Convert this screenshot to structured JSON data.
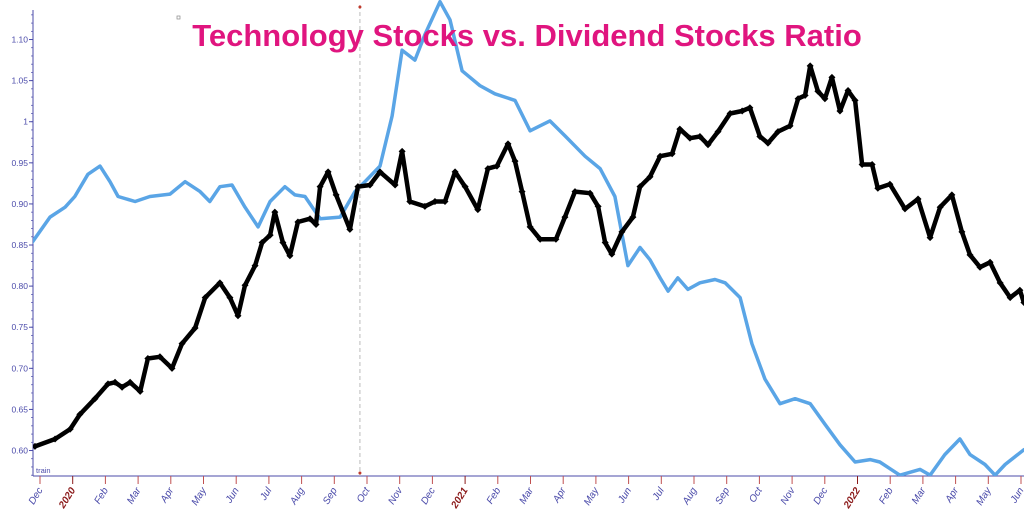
{
  "chart_data": {
    "type": "line",
    "title": "Technology Stocks vs. Dividend Stocks Ratio",
    "xlabel": "",
    "ylabel": "",
    "corner_label": "train",
    "x_units": "months since Dec 2019",
    "xlim": [
      -0.21,
      29.37
    ],
    "ylim": [
      0.569,
      1.142
    ],
    "grid": false,
    "y_ticks": [
      {
        "v": 0.6,
        "label": "0.60"
      },
      {
        "v": 0.65,
        "label": "0.65"
      },
      {
        "v": 0.7,
        "label": "0.70"
      },
      {
        "v": 0.75,
        "label": "0.75"
      },
      {
        "v": 0.8,
        "label": "0.80"
      },
      {
        "v": 0.85,
        "label": "0.85"
      },
      {
        "v": 0.9,
        "label": "0.90"
      },
      {
        "v": 0.95,
        "label": "0.95"
      },
      {
        "v": 1.0,
        "label": "1"
      },
      {
        "v": 1.05,
        "label": "1.05"
      },
      {
        "v": 1.1,
        "label": "1.10"
      }
    ],
    "x_ticks": [
      {
        "label": "Dec",
        "year": false
      },
      {
        "label": "2020",
        "year": true
      },
      {
        "label": "Feb",
        "year": false
      },
      {
        "label": "Mar",
        "year": false
      },
      {
        "label": "Apr",
        "year": false
      },
      {
        "label": "May",
        "year": false
      },
      {
        "label": "Jun",
        "year": false
      },
      {
        "label": "Jul",
        "year": false
      },
      {
        "label": "Aug",
        "year": false
      },
      {
        "label": "Sep",
        "year": false
      },
      {
        "label": "Oct",
        "year": false
      },
      {
        "label": "Nov",
        "year": false
      },
      {
        "label": "Dec",
        "year": false
      },
      {
        "label": "2021",
        "year": true
      },
      {
        "label": "Feb",
        "year": false
      },
      {
        "label": "Mar",
        "year": false
      },
      {
        "label": "Apr",
        "year": false
      },
      {
        "label": "May",
        "year": false
      },
      {
        "label": "Jun",
        "year": false
      },
      {
        "label": "Jul",
        "year": false
      },
      {
        "label": "Aug",
        "year": false
      },
      {
        "label": "Sep",
        "year": false
      },
      {
        "label": "Oct",
        "year": false
      },
      {
        "label": "Nov",
        "year": false
      },
      {
        "label": "Dec",
        "year": false
      },
      {
        "label": "2022",
        "year": true
      },
      {
        "label": "Feb",
        "year": false
      },
      {
        "label": "Mar",
        "year": false
      },
      {
        "label": "Apr",
        "year": false
      },
      {
        "label": "May",
        "year": false
      },
      {
        "label": "Jun",
        "year": false
      }
    ],
    "marker_line_x": 9.55,
    "colors": {
      "title": "#e0157f",
      "blue_series": "#5aa5e6",
      "black_series": "#000000",
      "axis": "#4b4baa",
      "year_tick": "#8b1a1a",
      "marker_line": "#c0392b"
    },
    "series": [
      {
        "name": "blue",
        "markers": false,
        "x": [
          -0.24,
          0.3,
          0.75,
          1.04,
          1.43,
          1.79,
          2.09,
          2.33,
          2.84,
          3.28,
          3.88,
          4.33,
          4.78,
          5.07,
          5.37,
          5.73,
          6.12,
          6.51,
          6.87,
          7.31,
          7.61,
          7.91,
          8.36,
          8.96,
          9.4,
          9.7,
          10.15,
          10.51,
          10.81,
          11.19,
          11.49,
          11.94,
          12.24,
          12.6,
          13.13,
          13.58,
          14.18,
          14.63,
          15.22,
          15.67,
          16.27,
          16.72,
          17.16,
          17.55,
          17.91,
          18.21,
          18.51,
          18.75,
          19.04,
          19.34,
          19.7,
          20.15,
          20.45,
          20.9,
          21.25,
          21.64,
          22.09,
          22.54,
          22.99,
          23.43,
          23.88,
          24.33,
          24.78,
          25.07,
          25.67,
          26.27,
          26.57,
          27.01,
          27.46,
          27.76,
          28.21,
          28.51,
          28.81,
          29.37
        ],
        "y": [
          0.853,
          0.884,
          0.896,
          0.909,
          0.936,
          0.946,
          0.927,
          0.909,
          0.903,
          0.909,
          0.912,
          0.927,
          0.915,
          0.903,
          0.921,
          0.923,
          0.896,
          0.872,
          0.903,
          0.921,
          0.911,
          0.909,
          0.882,
          0.884,
          0.915,
          0.927,
          0.946,
          1.007,
          1.087,
          1.075,
          1.106,
          1.146,
          1.124,
          1.062,
          1.044,
          1.034,
          1.026,
          0.989,
          1.001,
          0.983,
          0.958,
          0.943,
          0.909,
          0.825,
          0.847,
          0.832,
          0.81,
          0.794,
          0.81,
          0.796,
          0.804,
          0.808,
          0.804,
          0.786,
          0.73,
          0.687,
          0.657,
          0.663,
          0.657,
          0.632,
          0.607,
          0.586,
          0.589,
          0.586,
          0.57,
          0.577,
          0.57,
          0.595,
          0.614,
          0.595,
          0.583,
          0.57,
          0.583,
          0.601
        ]
      },
      {
        "name": "black",
        "markers": true,
        "x": [
          -0.15,
          0.45,
          0.9,
          1.19,
          1.64,
          2.03,
          2.24,
          2.45,
          2.69,
          2.99,
          3.22,
          3.58,
          3.94,
          4.24,
          4.63,
          4.93,
          5.37,
          5.67,
          5.91,
          6.12,
          6.42,
          6.63,
          6.87,
          7.01,
          7.25,
          7.46,
          7.7,
          8.06,
          8.24,
          8.36,
          8.6,
          8.84,
          9.25,
          9.49,
          9.85,
          10.15,
          10.6,
          10.81,
          11.04,
          11.49,
          11.79,
          12.09,
          12.39,
          12.69,
          13.07,
          13.37,
          13.64,
          13.97,
          14.18,
          14.39,
          14.63,
          14.93,
          15.4,
          15.67,
          15.97,
          16.42,
          16.66,
          16.87,
          17.07,
          17.37,
          17.7,
          17.91,
          18.21,
          18.51,
          18.87,
          19.1,
          19.4,
          19.7,
          19.94,
          20.24,
          20.6,
          20.96,
          21.19,
          21.49,
          21.73,
          22.03,
          22.39,
          22.63,
          22.84,
          22.99,
          23.22,
          23.43,
          23.64,
          23.88,
          24.12,
          24.33,
          24.54,
          24.84,
          25.01,
          25.37,
          25.82,
          26.21,
          26.57,
          26.87,
          27.22,
          27.52,
          27.76,
          28.06,
          28.36,
          28.66,
          28.96,
          29.25,
          29.37
        ],
        "y": [
          0.605,
          0.614,
          0.626,
          0.644,
          0.663,
          0.681,
          0.683,
          0.677,
          0.683,
          0.672,
          0.712,
          0.714,
          0.7,
          0.73,
          0.749,
          0.786,
          0.804,
          0.786,
          0.764,
          0.801,
          0.825,
          0.853,
          0.862,
          0.89,
          0.853,
          0.837,
          0.878,
          0.882,
          0.875,
          0.921,
          0.939,
          0.911,
          0.869,
          0.921,
          0.923,
          0.939,
          0.923,
          0.964,
          0.903,
          0.897,
          0.903,
          0.903,
          0.939,
          0.921,
          0.893,
          0.943,
          0.946,
          0.973,
          0.952,
          0.915,
          0.872,
          0.857,
          0.857,
          0.884,
          0.915,
          0.913,
          0.897,
          0.853,
          0.839,
          0.866,
          0.884,
          0.921,
          0.933,
          0.958,
          0.961,
          0.991,
          0.98,
          0.982,
          0.972,
          0.988,
          1.01,
          1.013,
          1.017,
          0.982,
          0.974,
          0.988,
          0.995,
          1.028,
          1.032,
          1.068,
          1.037,
          1.028,
          1.054,
          1.013,
          1.038,
          1.026,
          0.948,
          0.948,
          0.919,
          0.924,
          0.894,
          0.906,
          0.859,
          0.896,
          0.911,
          0.866,
          0.838,
          0.823,
          0.829,
          0.804,
          0.786,
          0.795,
          0.78
        ]
      }
    ]
  }
}
